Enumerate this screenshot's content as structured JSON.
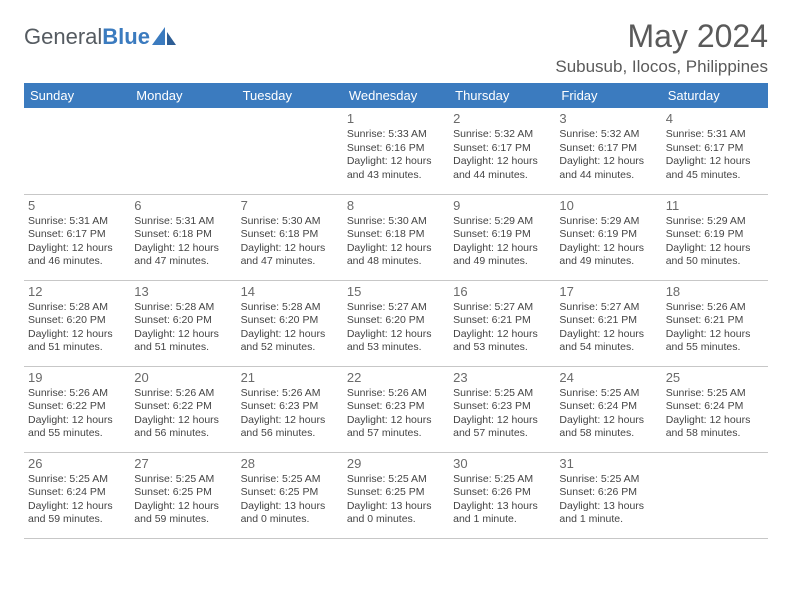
{
  "brand": {
    "part1": "General",
    "part2": "Blue"
  },
  "title": "May 2024",
  "location": "Subusub, Ilocos, Philippines",
  "colors": {
    "header_bg": "#3b7bbf",
    "header_text": "#ffffff",
    "text": "#444444",
    "daynum": "#6a6a6a",
    "border": "#c7c7c7",
    "brand_gray": "#555b61",
    "brand_blue": "#3b7bbf"
  },
  "weekdays": [
    "Sunday",
    "Monday",
    "Tuesday",
    "Wednesday",
    "Thursday",
    "Friday",
    "Saturday"
  ],
  "cells": [
    {
      "day": "",
      "sunrise": "",
      "sunset": "",
      "daylight": ""
    },
    {
      "day": "",
      "sunrise": "",
      "sunset": "",
      "daylight": ""
    },
    {
      "day": "",
      "sunrise": "",
      "sunset": "",
      "daylight": ""
    },
    {
      "day": "1",
      "sunrise": "Sunrise: 5:33 AM",
      "sunset": "Sunset: 6:16 PM",
      "daylight": "Daylight: 12 hours and 43 minutes."
    },
    {
      "day": "2",
      "sunrise": "Sunrise: 5:32 AM",
      "sunset": "Sunset: 6:17 PM",
      "daylight": "Daylight: 12 hours and 44 minutes."
    },
    {
      "day": "3",
      "sunrise": "Sunrise: 5:32 AM",
      "sunset": "Sunset: 6:17 PM",
      "daylight": "Daylight: 12 hours and 44 minutes."
    },
    {
      "day": "4",
      "sunrise": "Sunrise: 5:31 AM",
      "sunset": "Sunset: 6:17 PM",
      "daylight": "Daylight: 12 hours and 45 minutes."
    },
    {
      "day": "5",
      "sunrise": "Sunrise: 5:31 AM",
      "sunset": "Sunset: 6:17 PM",
      "daylight": "Daylight: 12 hours and 46 minutes."
    },
    {
      "day": "6",
      "sunrise": "Sunrise: 5:31 AM",
      "sunset": "Sunset: 6:18 PM",
      "daylight": "Daylight: 12 hours and 47 minutes."
    },
    {
      "day": "7",
      "sunrise": "Sunrise: 5:30 AM",
      "sunset": "Sunset: 6:18 PM",
      "daylight": "Daylight: 12 hours and 47 minutes."
    },
    {
      "day": "8",
      "sunrise": "Sunrise: 5:30 AM",
      "sunset": "Sunset: 6:18 PM",
      "daylight": "Daylight: 12 hours and 48 minutes."
    },
    {
      "day": "9",
      "sunrise": "Sunrise: 5:29 AM",
      "sunset": "Sunset: 6:19 PM",
      "daylight": "Daylight: 12 hours and 49 minutes."
    },
    {
      "day": "10",
      "sunrise": "Sunrise: 5:29 AM",
      "sunset": "Sunset: 6:19 PM",
      "daylight": "Daylight: 12 hours and 49 minutes."
    },
    {
      "day": "11",
      "sunrise": "Sunrise: 5:29 AM",
      "sunset": "Sunset: 6:19 PM",
      "daylight": "Daylight: 12 hours and 50 minutes."
    },
    {
      "day": "12",
      "sunrise": "Sunrise: 5:28 AM",
      "sunset": "Sunset: 6:20 PM",
      "daylight": "Daylight: 12 hours and 51 minutes."
    },
    {
      "day": "13",
      "sunrise": "Sunrise: 5:28 AM",
      "sunset": "Sunset: 6:20 PM",
      "daylight": "Daylight: 12 hours and 51 minutes."
    },
    {
      "day": "14",
      "sunrise": "Sunrise: 5:28 AM",
      "sunset": "Sunset: 6:20 PM",
      "daylight": "Daylight: 12 hours and 52 minutes."
    },
    {
      "day": "15",
      "sunrise": "Sunrise: 5:27 AM",
      "sunset": "Sunset: 6:20 PM",
      "daylight": "Daylight: 12 hours and 53 minutes."
    },
    {
      "day": "16",
      "sunrise": "Sunrise: 5:27 AM",
      "sunset": "Sunset: 6:21 PM",
      "daylight": "Daylight: 12 hours and 53 minutes."
    },
    {
      "day": "17",
      "sunrise": "Sunrise: 5:27 AM",
      "sunset": "Sunset: 6:21 PM",
      "daylight": "Daylight: 12 hours and 54 minutes."
    },
    {
      "day": "18",
      "sunrise": "Sunrise: 5:26 AM",
      "sunset": "Sunset: 6:21 PM",
      "daylight": "Daylight: 12 hours and 55 minutes."
    },
    {
      "day": "19",
      "sunrise": "Sunrise: 5:26 AM",
      "sunset": "Sunset: 6:22 PM",
      "daylight": "Daylight: 12 hours and 55 minutes."
    },
    {
      "day": "20",
      "sunrise": "Sunrise: 5:26 AM",
      "sunset": "Sunset: 6:22 PM",
      "daylight": "Daylight: 12 hours and 56 minutes."
    },
    {
      "day": "21",
      "sunrise": "Sunrise: 5:26 AM",
      "sunset": "Sunset: 6:23 PM",
      "daylight": "Daylight: 12 hours and 56 minutes."
    },
    {
      "day": "22",
      "sunrise": "Sunrise: 5:26 AM",
      "sunset": "Sunset: 6:23 PM",
      "daylight": "Daylight: 12 hours and 57 minutes."
    },
    {
      "day": "23",
      "sunrise": "Sunrise: 5:25 AM",
      "sunset": "Sunset: 6:23 PM",
      "daylight": "Daylight: 12 hours and 57 minutes."
    },
    {
      "day": "24",
      "sunrise": "Sunrise: 5:25 AM",
      "sunset": "Sunset: 6:24 PM",
      "daylight": "Daylight: 12 hours and 58 minutes."
    },
    {
      "day": "25",
      "sunrise": "Sunrise: 5:25 AM",
      "sunset": "Sunset: 6:24 PM",
      "daylight": "Daylight: 12 hours and 58 minutes."
    },
    {
      "day": "26",
      "sunrise": "Sunrise: 5:25 AM",
      "sunset": "Sunset: 6:24 PM",
      "daylight": "Daylight: 12 hours and 59 minutes."
    },
    {
      "day": "27",
      "sunrise": "Sunrise: 5:25 AM",
      "sunset": "Sunset: 6:25 PM",
      "daylight": "Daylight: 12 hours and 59 minutes."
    },
    {
      "day": "28",
      "sunrise": "Sunrise: 5:25 AM",
      "sunset": "Sunset: 6:25 PM",
      "daylight": "Daylight: 13 hours and 0 minutes."
    },
    {
      "day": "29",
      "sunrise": "Sunrise: 5:25 AM",
      "sunset": "Sunset: 6:25 PM",
      "daylight": "Daylight: 13 hours and 0 minutes."
    },
    {
      "day": "30",
      "sunrise": "Sunrise: 5:25 AM",
      "sunset": "Sunset: 6:26 PM",
      "daylight": "Daylight: 13 hours and 1 minute."
    },
    {
      "day": "31",
      "sunrise": "Sunrise: 5:25 AM",
      "sunset": "Sunset: 6:26 PM",
      "daylight": "Daylight: 13 hours and 1 minute."
    },
    {
      "day": "",
      "sunrise": "",
      "sunset": "",
      "daylight": ""
    }
  ]
}
